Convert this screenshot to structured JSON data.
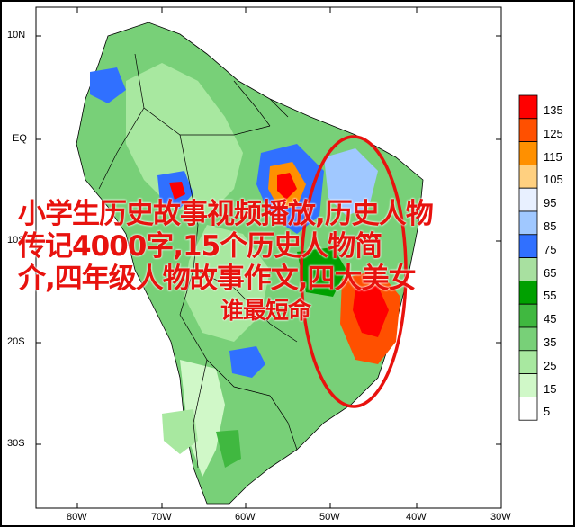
{
  "map": {
    "lat_labels": [
      "10N",
      "EQ",
      "10S",
      "20S",
      "30S"
    ],
    "lon_labels": [
      "80W",
      "70W",
      "60W",
      "50W",
      "40W",
      "30W"
    ]
  },
  "colorbar": {
    "levels": [
      "135",
      "125",
      "115",
      "105",
      "95",
      "85",
      "75",
      "65",
      "55",
      "45",
      "35",
      "25",
      "15",
      "5"
    ],
    "colors": [
      "#ff0000",
      "#ff5000",
      "#ff9000",
      "#ffd080",
      "#e8f0ff",
      "#a0c8ff",
      "#3070ff",
      "#a8e0a0",
      "#00a000",
      "#40b840",
      "#78d078",
      "#a8e8a0",
      "#d0f8c8",
      "#ffffff"
    ]
  },
  "overlay": {
    "title_lines": [
      "小学生历史故事视频播放,历史人物",
      "传记4000字,15个历史人物简",
      "介,四年级人物故事作文,四大美女",
      "谁最短命"
    ],
    "title_color": "#e8120e",
    "circle_color": "#e8120e"
  }
}
